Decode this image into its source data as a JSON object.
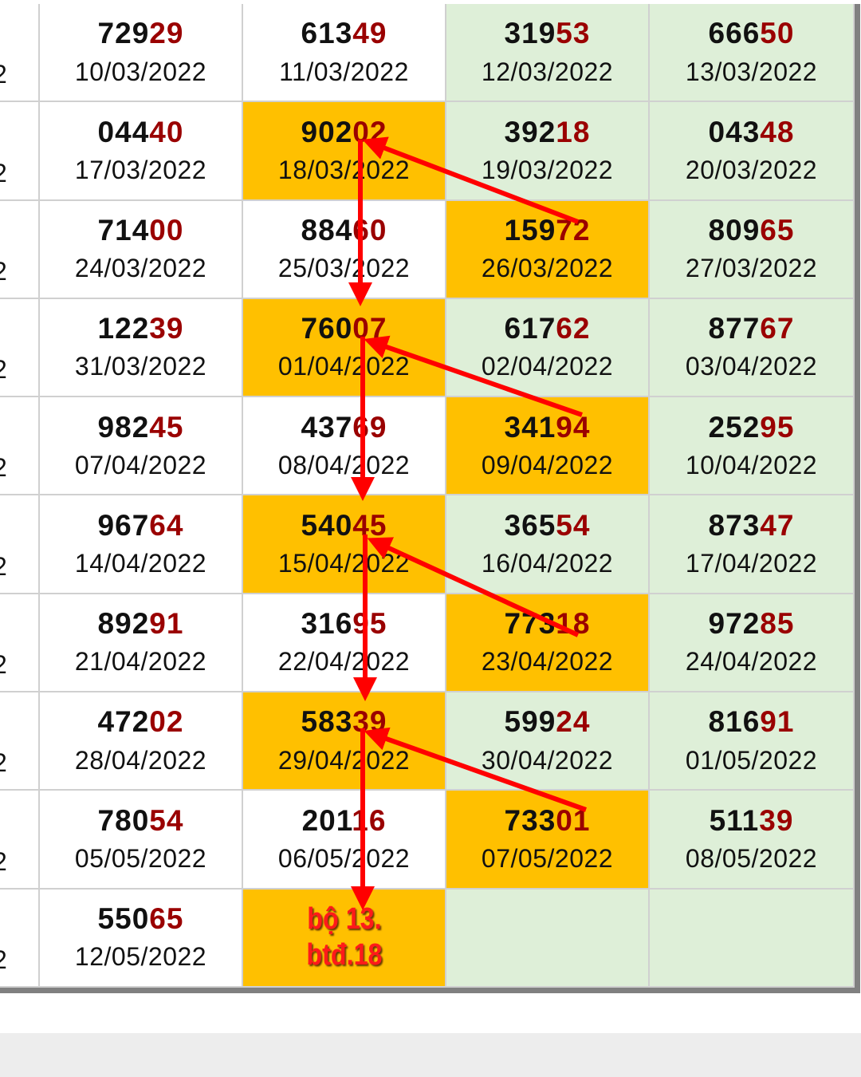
{
  "colors": {
    "highlight": "#ffc000",
    "green": "#deefd8",
    "tail": "#9a0000",
    "arrow": "#ff0000"
  },
  "edge_text": "2",
  "rows": [
    [
      {
        "head": "729",
        "tail": "29",
        "date": "10/03/2022"
      },
      {
        "head": "613",
        "tail": "49",
        "date": "11/03/2022"
      },
      {
        "head": "319",
        "tail": "53",
        "date": "12/03/2022"
      },
      {
        "head": "666",
        "tail": "50",
        "date": "13/03/2022"
      }
    ],
    [
      {
        "head": "044",
        "tail": "40",
        "date": "17/03/2022"
      },
      {
        "head": "902",
        "tail": "02",
        "date": "18/03/2022",
        "hl": true
      },
      {
        "head": "392",
        "tail": "18",
        "date": "19/03/2022"
      },
      {
        "head": "043",
        "tail": "48",
        "date": "20/03/2022"
      }
    ],
    [
      {
        "head": "714",
        "tail": "00",
        "date": "24/03/2022"
      },
      {
        "head": "884",
        "tail": "60",
        "date": "25/03/2022"
      },
      {
        "head": "159",
        "tail": "72",
        "date": "26/03/2022",
        "hl": true
      },
      {
        "head": "809",
        "tail": "65",
        "date": "27/03/2022"
      }
    ],
    [
      {
        "head": "122",
        "tail": "39",
        "date": "31/03/2022"
      },
      {
        "head": "760",
        "tail": "07",
        "date": "01/04/2022",
        "hl": true
      },
      {
        "head": "617",
        "tail": "62",
        "date": "02/04/2022"
      },
      {
        "head": "877",
        "tail": "67",
        "date": "03/04/2022"
      }
    ],
    [
      {
        "head": "982",
        "tail": "45",
        "date": "07/04/2022"
      },
      {
        "head": "437",
        "tail": "69",
        "date": "08/04/2022"
      },
      {
        "head": "341",
        "tail": "94",
        "date": "09/04/2022",
        "hl": true
      },
      {
        "head": "252",
        "tail": "95",
        "date": "10/04/2022"
      }
    ],
    [
      {
        "head": "967",
        "tail": "64",
        "date": "14/04/2022"
      },
      {
        "head": "540",
        "tail": "45",
        "date": "15/04/2022",
        "hl": true
      },
      {
        "head": "365",
        "tail": "54",
        "date": "16/04/2022"
      },
      {
        "head": "873",
        "tail": "47",
        "date": "17/04/2022"
      }
    ],
    [
      {
        "head": "892",
        "tail": "91",
        "date": "21/04/2022"
      },
      {
        "head": "316",
        "tail": "95",
        "date": "22/04/2022"
      },
      {
        "head": "773",
        "tail": "18",
        "date": "23/04/2022",
        "hl": true
      },
      {
        "head": "972",
        "tail": "85",
        "date": "24/04/2022"
      }
    ],
    [
      {
        "head": "472",
        "tail": "02",
        "date": "28/04/2022"
      },
      {
        "head": "583",
        "tail": "39",
        "date": "29/04/2022",
        "hl": true
      },
      {
        "head": "599",
        "tail": "24",
        "date": "30/04/2022"
      },
      {
        "head": "816",
        "tail": "91",
        "date": "01/05/2022"
      }
    ],
    [
      {
        "head": "780",
        "tail": "54",
        "date": "05/05/2022"
      },
      {
        "head": "201",
        "tail": "16",
        "date": "06/05/2022"
      },
      {
        "head": "733",
        "tail": "01",
        "date": "07/05/2022",
        "hl": true
      },
      {
        "head": "511",
        "tail": "39",
        "date": "08/05/2022"
      }
    ],
    [
      {
        "head": "550",
        "tail": "65",
        "date": "12/05/2022"
      },
      {
        "note": [
          "bộ 13.",
          "btđ.18"
        ],
        "hl": true
      },
      {},
      {}
    ]
  ]
}
